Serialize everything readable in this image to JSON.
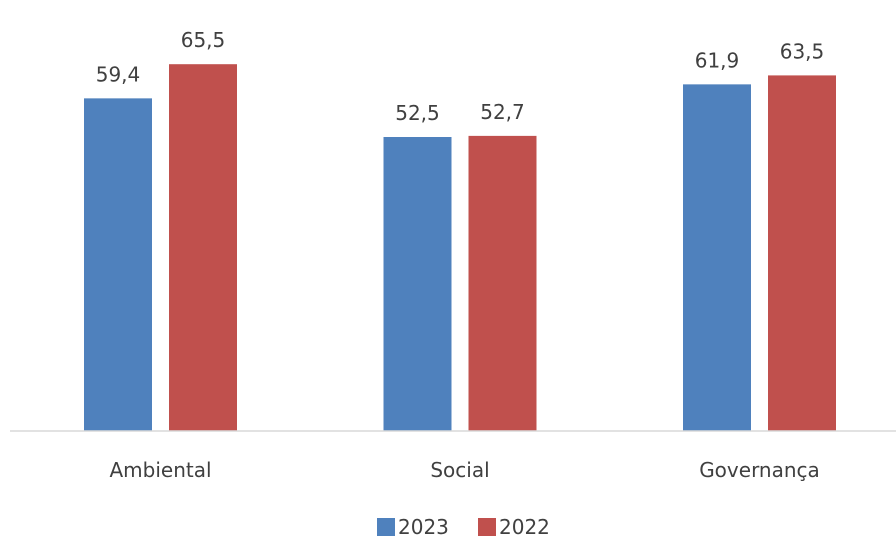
{
  "chart_data": {
    "type": "bar",
    "categories": [
      "Ambiental",
      "Social",
      "Governança"
    ],
    "series": [
      {
        "name": "2023",
        "values": [
          59.4,
          52.5,
          61.9
        ],
        "labels": [
          "59,4",
          "52,5",
          "61,9"
        ],
        "color": "#4F81BD"
      },
      {
        "name": "2022",
        "values": [
          65.5,
          52.7,
          63.5
        ],
        "labels": [
          "65,5",
          "52,7",
          "63,5"
        ],
        "color": "#C0504D"
      }
    ],
    "title": "",
    "xlabel": "",
    "ylabel": "",
    "ylim": [
      0,
      70
    ],
    "grid": false,
    "legend_position": "bottom"
  }
}
